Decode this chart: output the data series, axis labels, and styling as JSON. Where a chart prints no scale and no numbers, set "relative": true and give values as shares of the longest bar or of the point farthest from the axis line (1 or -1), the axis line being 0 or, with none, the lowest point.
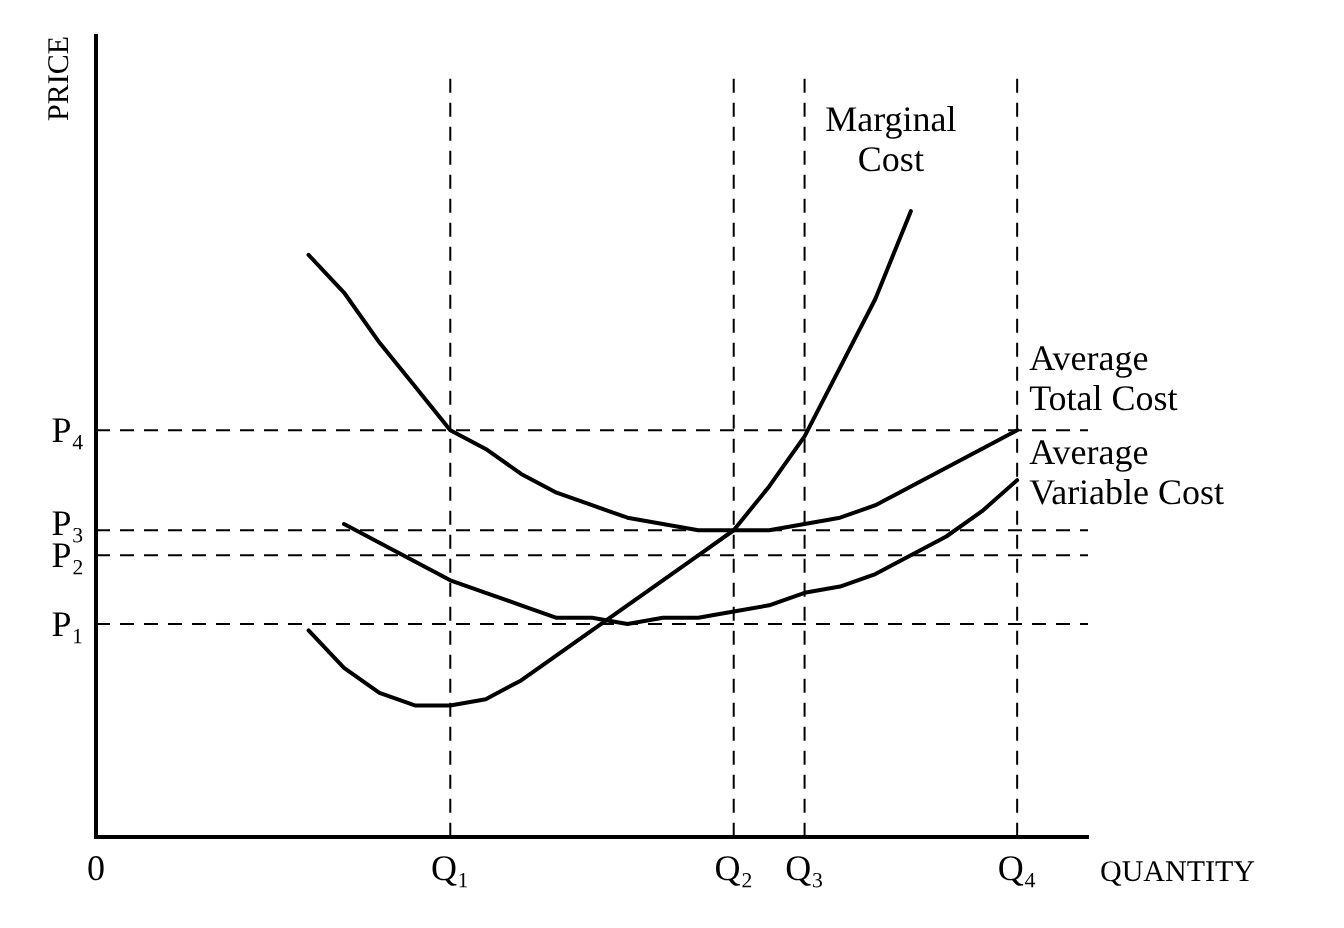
{
  "chart_data": {
    "type": "line",
    "xlabel": "QUANTITY",
    "ylabel": "PRICE",
    "relative": true,
    "categories": [
      "0",
      null,
      null,
      null,
      null,
      null,
      null,
      null,
      null,
      null,
      "Q₁",
      null,
      null,
      null,
      null,
      null,
      null,
      null,
      "Q₂",
      null,
      "Q₃",
      null,
      null,
      null,
      null,
      null,
      "Q₄",
      null,
      null
    ],
    "series": [
      {
        "name": "Marginal\nCost",
        "color": "#000000",
        "values": [
          null,
          null,
          null,
          null,
          null,
          null,
          0.33,
          0.27,
          0.23,
          0.21,
          0.21,
          0.22,
          0.25,
          0.29,
          0.33,
          0.37,
          0.41,
          0.45,
          0.49,
          0.56,
          0.64,
          0.75,
          0.86,
          1,
          null,
          null,
          null,
          null,
          null
        ]
      },
      {
        "name": "Average\nTotal Cost",
        "color": "#000000",
        "values": [
          null,
          null,
          null,
          null,
          null,
          null,
          0.93,
          0.87,
          0.79,
          0.72,
          0.65,
          0.62,
          0.58,
          0.55,
          0.53,
          0.51,
          0.5,
          0.49,
          0.49,
          0.49,
          0.5,
          0.51,
          0.53,
          0.56,
          0.59,
          0.62,
          0.65,
          null,
          null
        ]
      },
      {
        "name": "Average\nVariable Cost",
        "color": "#000000",
        "values": [
          null,
          null,
          null,
          null,
          null,
          null,
          null,
          0.5,
          0.47,
          0.44,
          0.41,
          0.39,
          0.37,
          0.35,
          0.35,
          0.34,
          0.35,
          0.35,
          0.36,
          0.37,
          0.39,
          0.4,
          0.42,
          0.45,
          0.48,
          0.52,
          0.57,
          null,
          null
        ]
      }
    ],
    "ref_lines": [
      {
        "axis": "y",
        "value": 0.34,
        "label": "P₁",
        "line_style": "dashed",
        "color": "#000000"
      },
      {
        "axis": "y",
        "value": 0.45,
        "label": "P₂",
        "line_style": "dashed",
        "color": "#000000"
      },
      {
        "axis": "y",
        "value": 0.49,
        "label": "P₃",
        "line_style": "dashed",
        "color": "#000000"
      },
      {
        "axis": "y",
        "value": 0.65,
        "label": "P₄",
        "line_style": "dashed",
        "color": "#000000"
      },
      {
        "axis": "x",
        "value": "Q₁",
        "line_style": "dashed",
        "color": "#000000"
      },
      {
        "axis": "x",
        "value": "Q₂",
        "line_style": "dashed",
        "color": "#000000"
      },
      {
        "axis": "x",
        "value": "Q₃",
        "line_style": "dashed",
        "color": "#000000"
      },
      {
        "axis": "x",
        "value": "Q₄",
        "line_style": "dashed",
        "color": "#000000"
      }
    ],
    "grid": false,
    "legend": false,
    "marker": "none",
    "line_style": "solid"
  }
}
